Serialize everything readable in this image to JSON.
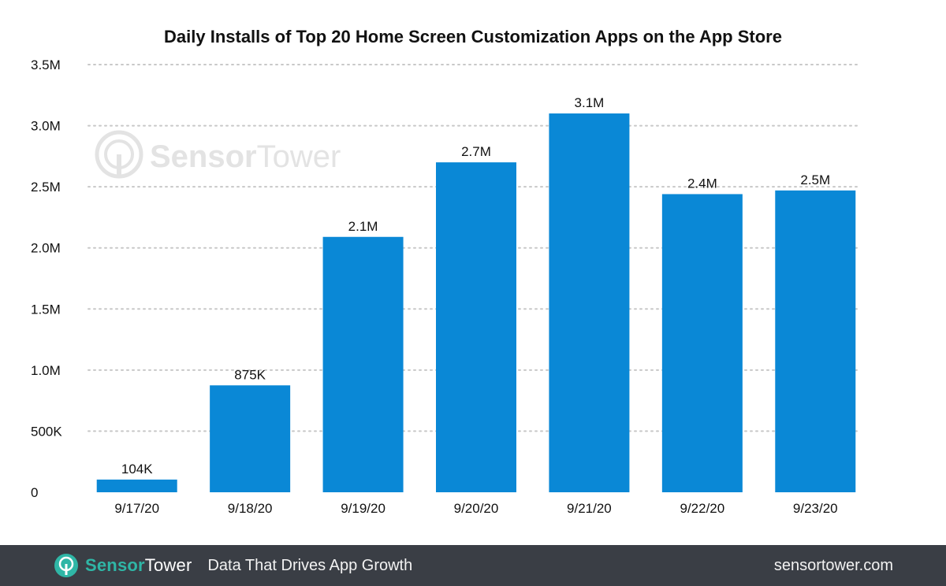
{
  "chart_data": {
    "type": "bar",
    "title": "Daily Installs of Top 20 Home Screen Customization Apps on the App Store",
    "xlabel": "",
    "ylabel": "",
    "categories": [
      "9/17/20",
      "9/18/20",
      "9/19/20",
      "9/20/20",
      "9/21/20",
      "9/22/20",
      "9/23/20"
    ],
    "values": [
      104000,
      875000,
      2090000,
      2700000,
      3100000,
      2440000,
      2470000
    ],
    "data_labels": [
      "104K",
      "875K",
      "2.1M",
      "2.7M",
      "3.1M",
      "2.4M",
      "2.5M"
    ],
    "ylim": [
      0,
      3500000
    ],
    "yticks": [
      0,
      500000,
      1000000,
      1500000,
      2000000,
      2500000,
      3000000,
      3500000
    ],
    "ytick_labels": [
      "0",
      "500K",
      "1.0M",
      "1.5M",
      "2.0M",
      "2.5M",
      "3.0M",
      "3.5M"
    ],
    "grid": true,
    "legend": "none",
    "bar_color": "#0a88d6"
  },
  "watermark": {
    "part1": "Sensor",
    "part2": "Tower",
    "icon": "sensortower-logo-icon"
  },
  "footer": {
    "brand_part1": "Sensor",
    "brand_part2": "Tower",
    "tagline": "Data That Drives App Growth",
    "site": "sensortower.com",
    "background": "#3a3e45",
    "accent": "#2fb6a6"
  }
}
